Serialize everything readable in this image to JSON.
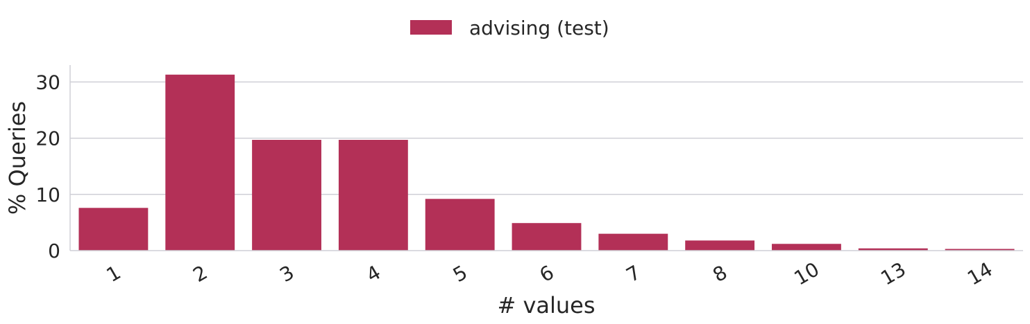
{
  "chart_data": {
    "type": "bar",
    "categories": [
      "1",
      "2",
      "3",
      "4",
      "5",
      "6",
      "7",
      "8",
      "10",
      "13",
      "14"
    ],
    "series": [
      {
        "name": "advising (test)",
        "values": [
          7.6,
          31.3,
          19.7,
          19.7,
          9.2,
          4.9,
          3.0,
          1.8,
          1.2,
          0.4,
          0.3
        ]
      }
    ],
    "xlabel": "# values",
    "ylabel": "% Queries",
    "ylim": [
      0,
      33
    ],
    "yticks": [
      0,
      10,
      20,
      30
    ],
    "grid": "horizontal",
    "legend_position": "top-center",
    "colors": {
      "bar": "#b33057",
      "grid": "#cfcfd6",
      "text": "#262626"
    }
  }
}
